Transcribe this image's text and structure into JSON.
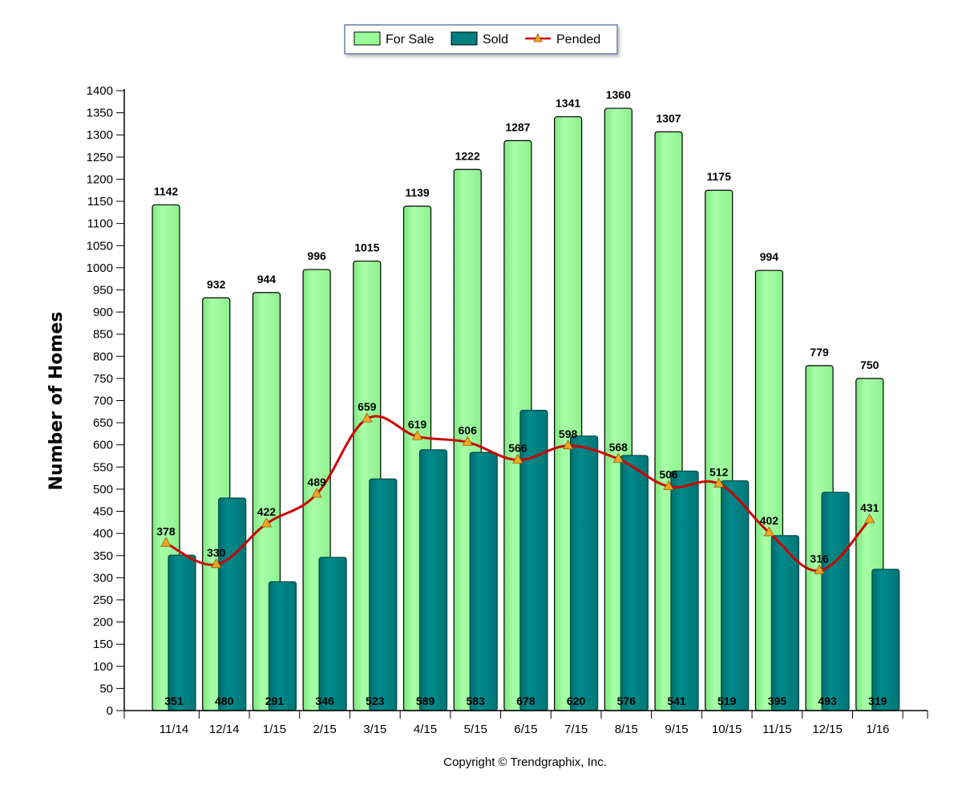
{
  "chart_data": {
    "type": "bar",
    "title": "",
    "xlabel": "",
    "ylabel": "Number of Homes",
    "categories": [
      "11/14",
      "12/14",
      "1/15",
      "2/15",
      "3/15",
      "4/15",
      "5/15",
      "6/15",
      "7/15",
      "8/15",
      "9/15",
      "10/15",
      "11/15",
      "12/15",
      "1/16"
    ],
    "ylim": [
      0,
      1400
    ],
    "yticks": [
      0,
      50,
      100,
      150,
      200,
      250,
      300,
      350,
      400,
      450,
      500,
      550,
      600,
      650,
      700,
      750,
      800,
      850,
      900,
      950,
      1000,
      1050,
      1100,
      1150,
      1200,
      1250,
      1300,
      1350,
      1400
    ],
    "grid": false,
    "legend_position": "top-center",
    "series": [
      {
        "name": "For Sale",
        "kind": "bar",
        "color": "#99ff99",
        "values": [
          1142,
          932,
          944,
          996,
          1015,
          1139,
          1222,
          1287,
          1341,
          1360,
          1307,
          1175,
          994,
          779,
          750
        ]
      },
      {
        "name": "Sold",
        "kind": "bar",
        "color": "#008080",
        "values": [
          351,
          480,
          291,
          346,
          523,
          589,
          583,
          678,
          620,
          576,
          541,
          519,
          395,
          493,
          319
        ]
      },
      {
        "name": "Pended",
        "kind": "line",
        "color": "#cc0000",
        "marker_color": "#f5a623",
        "values": [
          378,
          330,
          422,
          489,
          659,
          619,
          606,
          566,
          598,
          568,
          506,
          512,
          402,
          316,
          431
        ]
      }
    ]
  },
  "footer": "Copyright © Trendgraphix, Inc."
}
